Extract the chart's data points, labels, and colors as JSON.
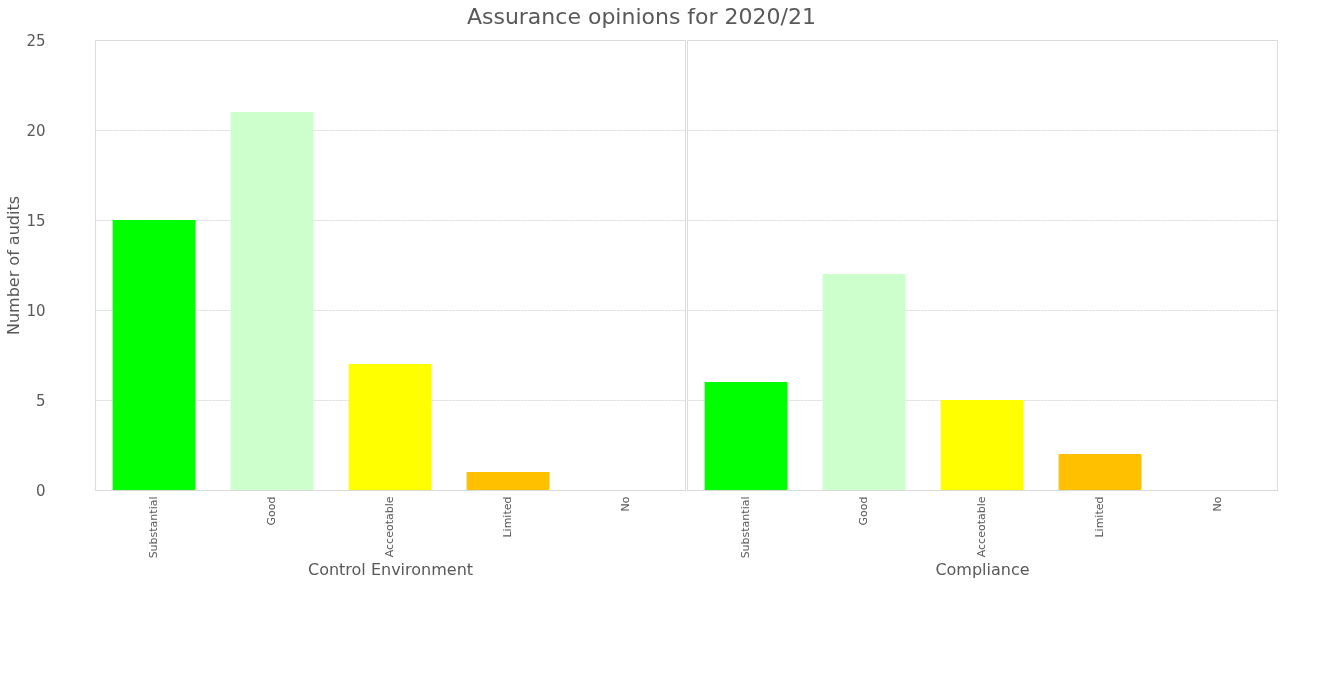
{
  "chart_data": [
    {
      "type": "bar",
      "title": "Assurance opinions for 2020/21",
      "xlabel": "Control Environment",
      "ylabel": "Number of audits",
      "categories": [
        "Substantial",
        "Good",
        "Acceotable",
        "Limited",
        "No"
      ],
      "values": [
        15,
        21,
        7,
        1,
        0
      ],
      "colors": [
        "#00ff00",
        "#ccffcc",
        "#ffff00",
        "#ffc000",
        "#ff0000"
      ],
      "ylim": [
        0,
        25
      ],
      "yticks": [
        0,
        5,
        10,
        15,
        20,
        25
      ],
      "grid": "y"
    },
    {
      "type": "bar",
      "xlabel": "Compliance",
      "categories": [
        "Substantial",
        "Good",
        "Acceotable",
        "Limited",
        "No"
      ],
      "values": [
        6,
        12,
        5,
        2,
        0
      ],
      "colors": [
        "#00ff00",
        "#ccffcc",
        "#ffff00",
        "#ffc000",
        "#ff0000"
      ],
      "ylim": [
        0,
        25
      ],
      "yticks": [
        0,
        5,
        10,
        15,
        20,
        25
      ],
      "grid": "y",
      "tick_labels": "x"
    }
  ]
}
